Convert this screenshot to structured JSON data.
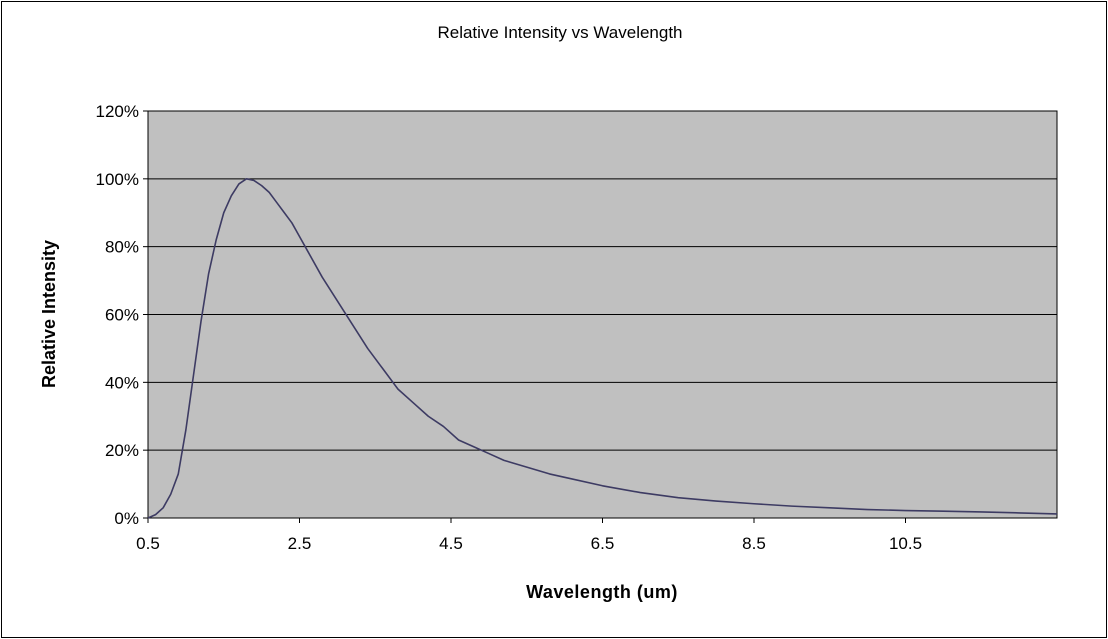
{
  "chart_data": {
    "type": "line",
    "title": "Relative Intensity vs Wavelength",
    "xlabel": "Wavelength (um)",
    "ylabel": "Relative Intensity",
    "xlim": [
      0.5,
      12.5
    ],
    "ylim": [
      0,
      120
    ],
    "x_ticks": [
      0.5,
      2.5,
      4.5,
      6.5,
      8.5,
      10.5
    ],
    "x_tick_labels": [
      "0.5",
      "2.5",
      "4.5",
      "6.5",
      "8.5",
      "10.5"
    ],
    "y_ticks": [
      0,
      20,
      40,
      60,
      80,
      100,
      120
    ],
    "y_tick_labels": [
      "0%",
      "20%",
      "40%",
      "60%",
      "80%",
      "100%",
      "120%"
    ],
    "y_unit": "%",
    "grid": "horizontal",
    "legend": "none",
    "series": [
      {
        "color": "#3d3b63",
        "x": [
          0.5,
          0.6,
          0.7,
          0.8,
          0.9,
          1.0,
          1.1,
          1.2,
          1.3,
          1.4,
          1.5,
          1.6,
          1.7,
          1.8,
          1.9,
          2.0,
          2.1,
          2.2,
          2.3,
          2.4,
          2.5,
          2.6,
          2.8,
          3.0,
          3.2,
          3.4,
          3.6,
          3.8,
          4.0,
          4.2,
          4.4,
          4.6,
          4.8,
          5.0,
          5.2,
          5.5,
          5.8,
          6.0,
          6.5,
          7.0,
          7.5,
          8.0,
          8.5,
          9.0,
          9.5,
          10.0,
          10.5,
          11.0,
          11.5,
          12.0,
          12.5
        ],
        "y": [
          0,
          1,
          3,
          7,
          13,
          26,
          42,
          58,
          72,
          82,
          90,
          95,
          98.5,
          100,
          99.5,
          98,
          96,
          93,
          90,
          87,
          83,
          79,
          71,
          64,
          57,
          50,
          44,
          38,
          34,
          30,
          27,
          23,
          21,
          19,
          17,
          15,
          13,
          12,
          9.5,
          7.5,
          6,
          5,
          4.2,
          3.5,
          3,
          2.5,
          2.2,
          2,
          1.8,
          1.5,
          1.2
        ]
      }
    ]
  },
  "colors": {
    "plot_background": "#c0c0c0",
    "gridline": "#000000",
    "line": "#3d3b63",
    "frame": "#000000"
  }
}
